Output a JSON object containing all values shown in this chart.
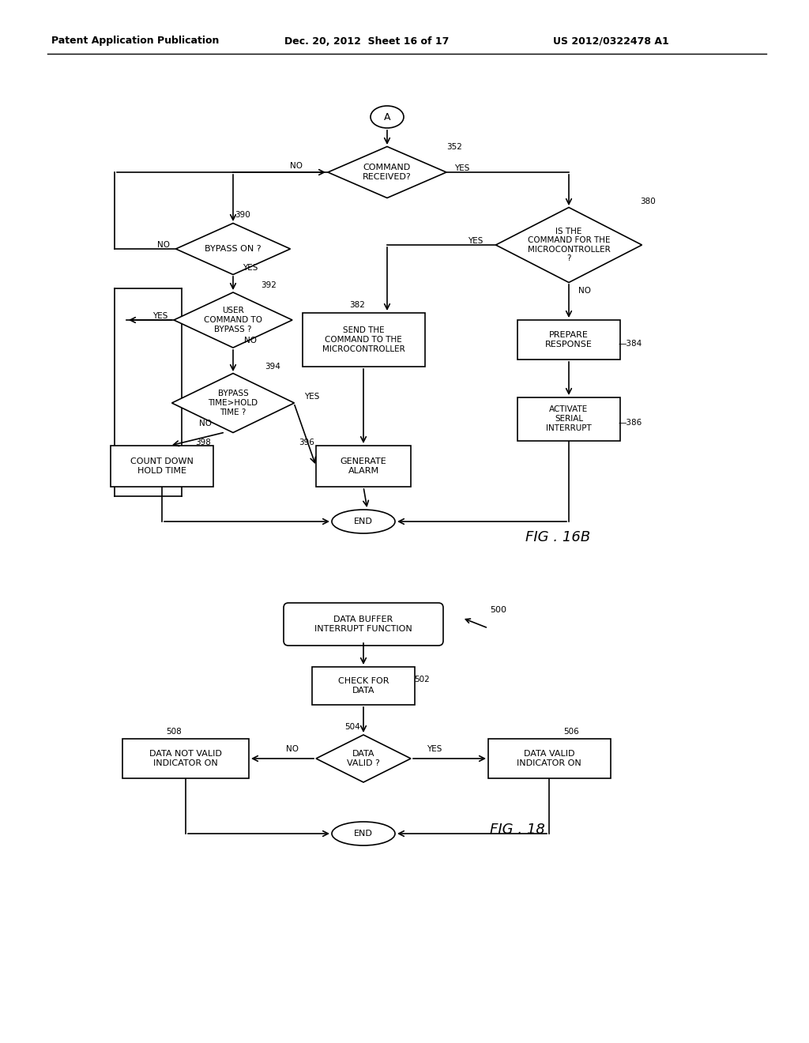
{
  "header_left": "Patent Application Publication",
  "header_mid": "Dec. 20, 2012  Sheet 16 of 17",
  "header_right": "US 2012/0322478 A1",
  "fig16b_label": "FIG . 16B",
  "fig18_label": "FIG . 18",
  "bg_color": "#ffffff",
  "line_color": "#000000",
  "text_color": "#000000",
  "font_size_header": 9,
  "font_size_node": 7.5,
  "font_size_label": 12
}
